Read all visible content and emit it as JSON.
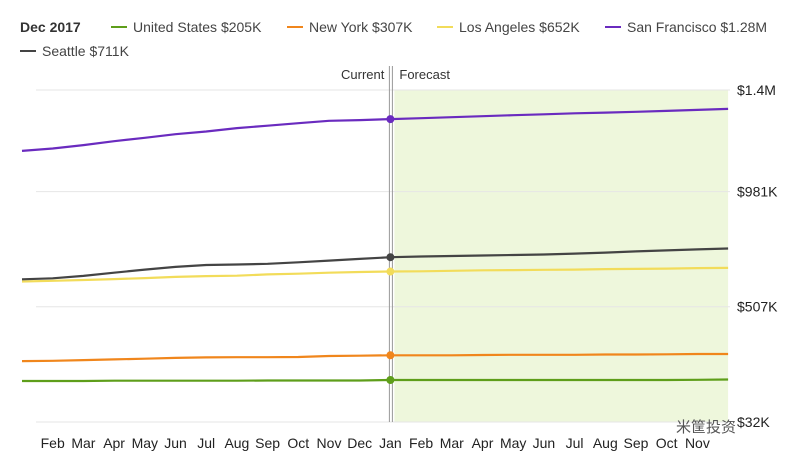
{
  "chart_data": {
    "type": "line",
    "title": "Dec 2017",
    "annotations": {
      "current": "Current",
      "forecast": "Forecast"
    },
    "x": [
      "Jan",
      "Feb",
      "Mar",
      "Apr",
      "May",
      "Jun",
      "Jul",
      "Aug",
      "Sep",
      "Oct",
      "Nov",
      "Dec",
      "Jan",
      "Feb",
      "Mar",
      "Apr",
      "May",
      "Jun",
      "Jul",
      "Aug",
      "Sep",
      "Oct",
      "Nov",
      "Dec"
    ],
    "x_tick_labels": [
      "Feb",
      "Mar",
      "Apr",
      "May",
      "Jun",
      "Jul",
      "Aug",
      "Sep",
      "Oct",
      "Nov",
      "Dec",
      "Jan",
      "Feb",
      "Mar",
      "Apr",
      "May",
      "Jun",
      "Jul",
      "Aug",
      "Sep",
      "Oct",
      "Nov"
    ],
    "current_index": 12,
    "y_tick_labels": [
      "$1.4M",
      "$981K",
      "$507K",
      "$32K"
    ],
    "y_tick_values": [
      1400000,
      981000,
      507000,
      32000
    ],
    "ylim": [
      32000,
      1400000
    ],
    "grid": true,
    "legend_position": "top-left",
    "series": [
      {
        "name": "United States",
        "label": "$205K",
        "color": "#5e9e1a",
        "values": [
          201000,
          201000,
          201000,
          202000,
          202000,
          202000,
          202000,
          202000,
          203000,
          203000,
          203000,
          203000,
          205000,
          205000,
          205000,
          205000,
          205000,
          205000,
          205000,
          205000,
          205000,
          205000,
          206000,
          207000
        ]
      },
      {
        "name": "New York",
        "label": "$307K",
        "color": "#f0861c",
        "values": [
          283000,
          284000,
          287000,
          290000,
          293000,
          296000,
          298000,
          299000,
          299000,
          300000,
          304000,
          305000,
          307000,
          307000,
          307000,
          308000,
          309000,
          309000,
          309000,
          310000,
          310000,
          311000,
          312000,
          312000
        ]
      },
      {
        "name": "Los Angeles",
        "label": "$652K",
        "color": "#f2dc5a",
        "values": [
          611000,
          614000,
          617000,
          621000,
          625000,
          630000,
          633000,
          635000,
          640000,
          643000,
          647000,
          650000,
          652000,
          653000,
          655000,
          657000,
          658000,
          659000,
          660000,
          662000,
          663000,
          664000,
          666000,
          667000
        ]
      },
      {
        "name": "San Francisco",
        "label": "$1.28M",
        "color": "#6a2bbf",
        "values": [
          1149000,
          1159000,
          1173000,
          1189000,
          1203000,
          1218000,
          1229000,
          1243000,
          1253000,
          1263000,
          1273000,
          1276000,
          1280000,
          1284000,
          1288000,
          1292000,
          1296000,
          1300000,
          1304000,
          1307000,
          1310000,
          1314000,
          1318000,
          1322000
        ]
      },
      {
        "name": "Seattle",
        "label": "$711K",
        "color": "#444444",
        "values": [
          620000,
          624000,
          634000,
          647000,
          660000,
          671000,
          679000,
          681000,
          684000,
          690000,
          697000,
          704000,
          711000,
          714000,
          716000,
          718000,
          720000,
          722000,
          726000,
          730000,
          735000,
          739000,
          743000,
          747000
        ]
      }
    ]
  },
  "watermark": "米筐投资"
}
